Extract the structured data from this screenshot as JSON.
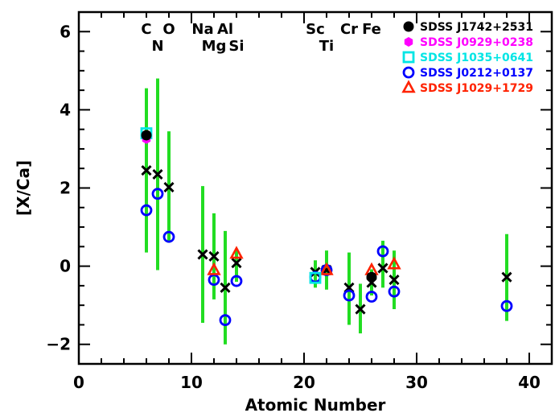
{
  "chart_data": {
    "type": "scatter",
    "title": "",
    "xlabel": "Atomic Number",
    "ylabel": "[X/Ca]",
    "xlim": [
      0,
      42
    ],
    "ylim": [
      -2.5,
      6.5
    ],
    "x_ticks": [
      0,
      10,
      20,
      30,
      40
    ],
    "y_ticks": [
      -2,
      0,
      2,
      4,
      6
    ],
    "y_tick_labels": [
      "−2",
      "0",
      "2",
      "4",
      "6"
    ],
    "legend_position": "top-right",
    "element_labels": [
      {
        "text": "C",
        "z": 6,
        "row": 1
      },
      {
        "text": "N",
        "z": 7,
        "row": 2
      },
      {
        "text": "O",
        "z": 8,
        "row": 1
      },
      {
        "text": "Na",
        "z": 11,
        "row": 1
      },
      {
        "text": "Mg",
        "z": 12,
        "row": 2
      },
      {
        "text": "Al",
        "z": 13,
        "row": 1
      },
      {
        "text": "Si",
        "z": 14,
        "row": 2
      },
      {
        "text": "Sc",
        "z": 21,
        "row": 1
      },
      {
        "text": "Ti",
        "z": 22,
        "row": 2
      },
      {
        "text": "Cr",
        "z": 24,
        "row": 1
      },
      {
        "text": "Fe",
        "z": 26,
        "row": 1
      }
    ],
    "reference": {
      "marker": "x",
      "color": "#000000",
      "errorbar_color": "#22dd22",
      "points": [
        {
          "x": 6,
          "y": 2.45,
          "lo": 0.35,
          "hi": 4.55
        },
        {
          "x": 7,
          "y": 2.35,
          "lo": -0.1,
          "hi": 4.8
        },
        {
          "x": 8,
          "y": 2.02,
          "lo": 0.6,
          "hi": 3.45
        },
        {
          "x": 11,
          "y": 0.3,
          "lo": -1.45,
          "hi": 2.05
        },
        {
          "x": 12,
          "y": 0.25,
          "lo": -0.85,
          "hi": 1.35
        },
        {
          "x": 13,
          "y": -0.55,
          "lo": -2.0,
          "hi": 0.9
        },
        {
          "x": 14,
          "y": 0.08,
          "lo": -0.4,
          "hi": 0.45
        },
        {
          "x": 21,
          "y": -0.15,
          "lo": -0.55,
          "hi": 0.15
        },
        {
          "x": 22,
          "y": -0.1,
          "lo": -0.6,
          "hi": 0.4
        },
        {
          "x": 24,
          "y": -0.55,
          "lo": -1.5,
          "hi": 0.35
        },
        {
          "x": 25,
          "y": -1.1,
          "lo": -1.72,
          "hi": -0.45
        },
        {
          "x": 26,
          "y": -0.42,
          "lo": -0.75,
          "hi": -0.08
        },
        {
          "x": 27,
          "y": -0.05,
          "lo": -0.55,
          "hi": 0.65
        },
        {
          "x": 28,
          "y": -0.35,
          "lo": -1.1,
          "hi": 0.4
        },
        {
          "x": 38,
          "y": -0.28,
          "lo": -1.4,
          "hi": 0.82
        }
      ]
    },
    "series": [
      {
        "name": "SDSS J1742+2531",
        "marker": "filled-circle",
        "color": "#000000",
        "points": [
          {
            "x": 6,
            "y": 3.35
          },
          {
            "x": 26,
            "y": -0.28
          }
        ]
      },
      {
        "name": "SDSS J0929+0238",
        "marker": "filled-hexagon",
        "color": "#ff00ff",
        "points": [
          {
            "x": 6,
            "y": 3.25
          }
        ]
      },
      {
        "name": "SDSS J1035+0641",
        "marker": "open-square",
        "color": "#00e5e5",
        "points": [
          {
            "x": 6,
            "y": 3.4
          },
          {
            "x": 21,
            "y": -0.3
          }
        ]
      },
      {
        "name": "SDSS J0212+0137",
        "marker": "open-circle",
        "color": "#0000ff",
        "points": [
          {
            "x": 6,
            "y": 1.43
          },
          {
            "x": 7,
            "y": 1.85
          },
          {
            "x": 8,
            "y": 0.75
          },
          {
            "x": 12,
            "y": -0.35
          },
          {
            "x": 13,
            "y": -1.38
          },
          {
            "x": 14,
            "y": -0.38
          },
          {
            "x": 21,
            "y": -0.28
          },
          {
            "x": 22,
            "y": -0.1
          },
          {
            "x": 24,
            "y": -0.75
          },
          {
            "x": 26,
            "y": -0.78
          },
          {
            "x": 27,
            "y": 0.38
          },
          {
            "x": 28,
            "y": -0.65
          },
          {
            "x": 38,
            "y": -1.02
          }
        ]
      },
      {
        "name": "SDSS J1029+1729",
        "marker": "open-triangle",
        "color": "#ff2200",
        "points": [
          {
            "x": 12,
            "y": -0.1
          },
          {
            "x": 14,
            "y": 0.32
          },
          {
            "x": 22,
            "y": -0.1
          },
          {
            "x": 26,
            "y": -0.1
          },
          {
            "x": 28,
            "y": 0.05
          }
        ]
      }
    ]
  }
}
